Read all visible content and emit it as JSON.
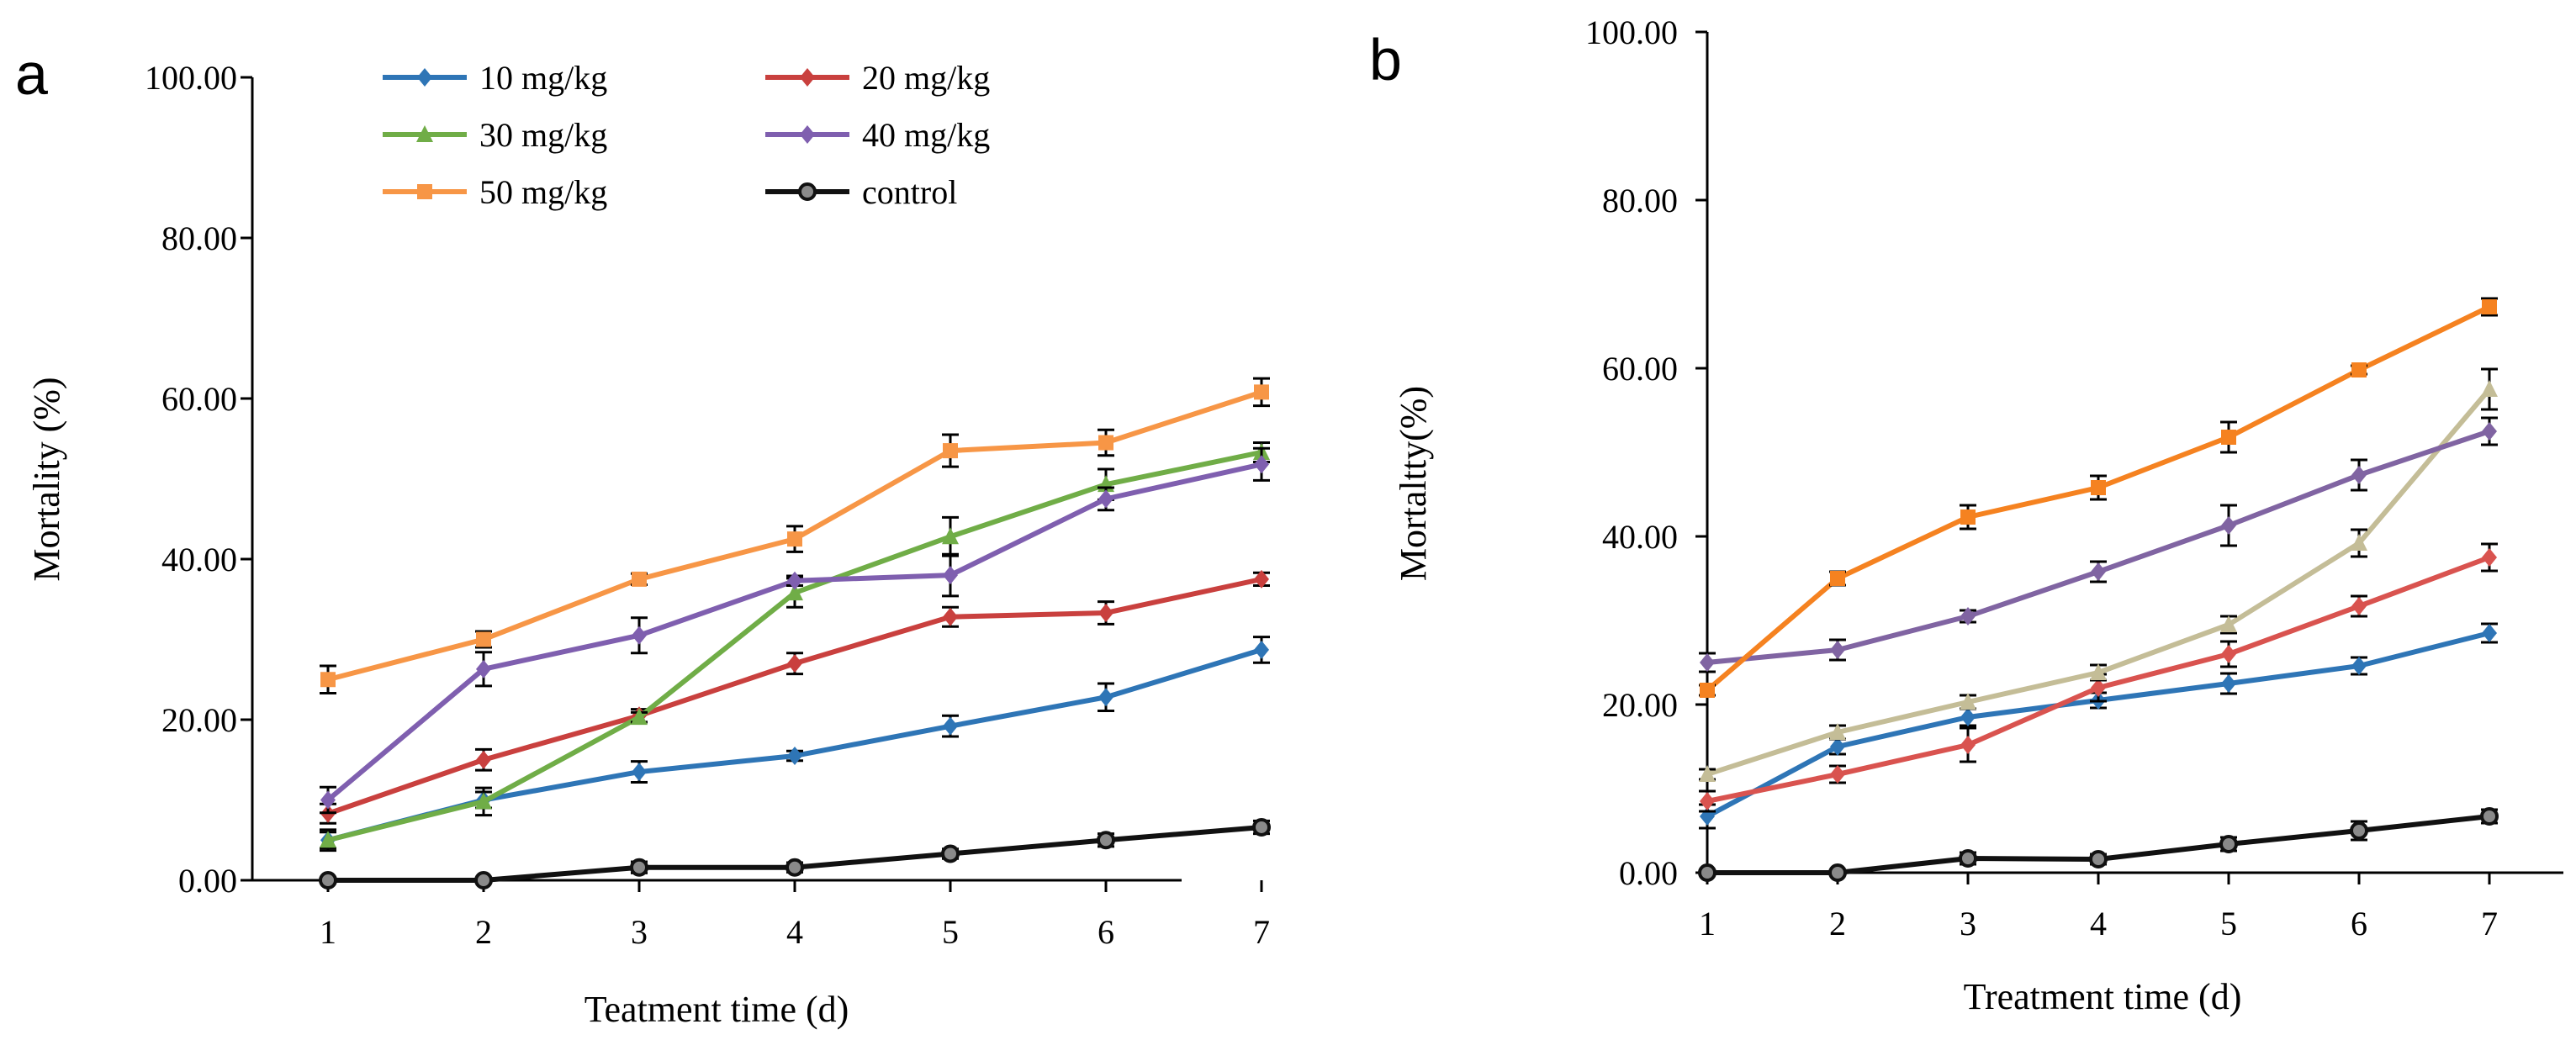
{
  "chart_data": [
    {
      "type": "line",
      "panel_label": "a",
      "xlabel": "Teatment time (d)",
      "ylabel": "Mortality (%)",
      "x": [
        1,
        2,
        3,
        4,
        5,
        6,
        7
      ],
      "ylim": [
        0,
        100
      ],
      "yticks": [
        "0.00",
        "20.00",
        "40.00",
        "60.00",
        "80.00",
        "100.00"
      ],
      "legend": "top",
      "series": [
        {
          "name": "10 mg/kg",
          "color": "#2E75B6",
          "marker": "diamond",
          "values": [
            5.0,
            10.0,
            13.5,
            15.5,
            19.2,
            22.8,
            28.7
          ],
          "errors": [
            1.0,
            1.0,
            1.3,
            0.6,
            1.3,
            1.7,
            1.6
          ]
        },
        {
          "name": "20 mg/kg",
          "color": "#C9403E",
          "marker": "diamond",
          "values": [
            8.3,
            15.0,
            20.5,
            27.0,
            32.8,
            33.3,
            37.5
          ],
          "errors": [
            1.2,
            1.3,
            0.8,
            1.3,
            1.2,
            1.4,
            0.8
          ]
        },
        {
          "name": "30 mg/kg",
          "color": "#70AD47",
          "marker": "triangle",
          "values": [
            5.0,
            9.8,
            20.3,
            35.8,
            42.8,
            49.3,
            53.3
          ],
          "errors": [
            1.3,
            1.7,
            0.6,
            1.8,
            2.4,
            1.9,
            1.2
          ]
        },
        {
          "name": "40 mg/kg",
          "color": "#7F5FAF",
          "marker": "diamond",
          "values": [
            10.0,
            26.3,
            30.5,
            37.3,
            38.0,
            47.5,
            51.8
          ],
          "errors": [
            1.6,
            2.1,
            2.2,
            0.6,
            2.6,
            1.4,
            2.0
          ]
        },
        {
          "name": "50 mg/kg",
          "color": "#F79646",
          "marker": "square",
          "values": [
            25.0,
            30.0,
            37.5,
            42.5,
            53.5,
            54.5,
            60.8
          ],
          "errors": [
            1.7,
            1.0,
            0.7,
            1.6,
            2.0,
            1.6,
            1.7
          ]
        },
        {
          "name": "control",
          "color": "#111111",
          "marker": "dot",
          "values": [
            0.0,
            0.0,
            1.6,
            1.6,
            3.3,
            5.0,
            6.6
          ],
          "errors": [
            0.3,
            0.3,
            0.7,
            0.6,
            0.6,
            0.8,
            0.8
          ]
        }
      ]
    },
    {
      "type": "line",
      "panel_label": "b",
      "xlabel": "Treatment time (d)",
      "ylabel": "Mortaltty(%)",
      "x": [
        1,
        2,
        3,
        4,
        5,
        6,
        7
      ],
      "ylim": [
        0,
        100
      ],
      "yticks": [
        "0.00",
        "20.00",
        "40.00",
        "60.00",
        "80.00",
        "100.00"
      ],
      "series": [
        {
          "name": "10 mg/kg",
          "color": "#2E75B6",
          "marker": "diamond",
          "values": [
            6.7,
            15.0,
            18.5,
            20.5,
            22.5,
            24.6,
            28.5
          ],
          "errors": [
            1.4,
            0.9,
            1.0,
            0.9,
            1.2,
            1.0,
            1.1
          ]
        },
        {
          "name": "20 mg/kg",
          "color": "#D9534F",
          "marker": "diamond",
          "values": [
            8.5,
            11.7,
            15.2,
            22.0,
            26.0,
            31.7,
            37.5
          ],
          "errors": [
            1.2,
            1.0,
            2.0,
            1.6,
            1.5,
            1.2,
            1.6
          ]
        },
        {
          "name": "30 mg/kg",
          "color": "#C4BD97",
          "marker": "triangle",
          "values": [
            11.7,
            16.7,
            20.3,
            23.8,
            29.5,
            39.2,
            57.5
          ],
          "errors": [
            0.6,
            0.8,
            0.8,
            0.9,
            1.0,
            1.6,
            2.4
          ]
        },
        {
          "name": "40 mg/kg",
          "color": "#8064A2",
          "marker": "diamond",
          "values": [
            25.0,
            26.5,
            30.5,
            35.8,
            41.3,
            47.3,
            52.5
          ],
          "errors": [
            1.1,
            1.2,
            0.7,
            1.2,
            2.4,
            1.8,
            1.6
          ]
        },
        {
          "name": "50 mg/kg",
          "color": "#F58220",
          "marker": "square",
          "values": [
            21.7,
            35.0,
            42.3,
            45.8,
            51.8,
            59.8,
            67.3
          ],
          "errors": [
            0.6,
            0.8,
            1.4,
            1.4,
            1.8,
            0.5,
            1.0
          ]
        },
        {
          "name": "control",
          "color": "#111111",
          "marker": "dot",
          "values": [
            0.0,
            0.0,
            1.7,
            1.6,
            3.4,
            5.0,
            6.7
          ],
          "errors": [
            0.3,
            0.3,
            0.7,
            0.6,
            0.8,
            1.1,
            0.8
          ]
        }
      ]
    }
  ]
}
